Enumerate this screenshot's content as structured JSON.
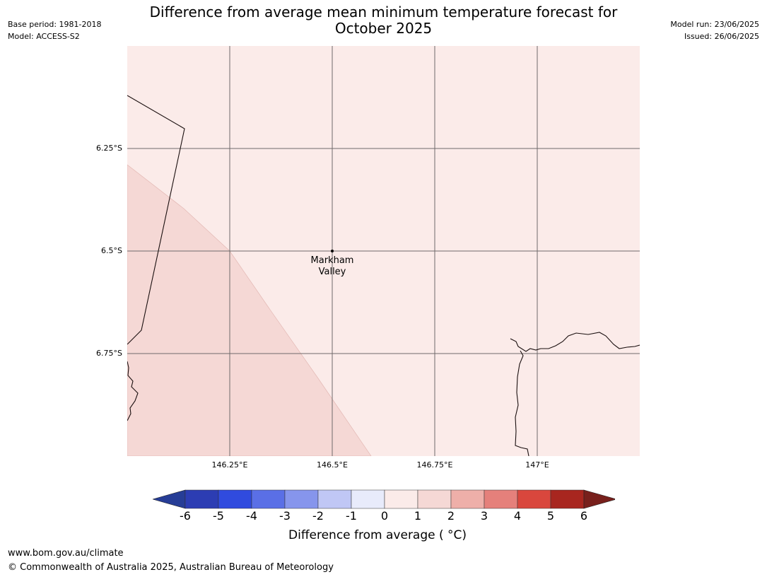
{
  "header": {
    "base_period": "Base period: 1981-2018",
    "model": "Model: ACCESS-S2",
    "title_line1": "Difference from average mean minimum temperature forecast for",
    "title_line2": "October 2025",
    "model_run": "Model run: 23/06/2025",
    "issued": "Issued: 26/06/2025"
  },
  "map": {
    "location_label_line1": "Markham",
    "location_label_line2": "Valley",
    "lat_labels": [
      "6.25°S",
      "6.5°S",
      "6.75°S"
    ],
    "lon_labels": [
      "146.25°E",
      "146.5°E",
      "146.75°E",
      "147°E"
    ],
    "fill_colors": {
      "zero_to_one": "#fbebe9",
      "one_to_two": "#f5d8d5"
    }
  },
  "legend": {
    "ticks": [
      "-6",
      "-5",
      "-4",
      "-3",
      "-2",
      "-1",
      "0",
      "1",
      "2",
      "3",
      "4",
      "5",
      "6"
    ],
    "colors": [
      "#263d96",
      "#2c3db3",
      "#304bde",
      "#5a6fe6",
      "#8695ec",
      "#c0c7f5",
      "#e8ebfb",
      "#fbebe9",
      "#f5d8d5",
      "#eeafa9",
      "#e5807b",
      "#d9473d",
      "#a8261f",
      "#78201c"
    ],
    "label": "Difference from average ( °C)"
  },
  "footer": {
    "website": "www.bom.gov.au/climate",
    "copyright": "© Commonwealth of Australia 2025, Australian Bureau of Meteorology"
  }
}
